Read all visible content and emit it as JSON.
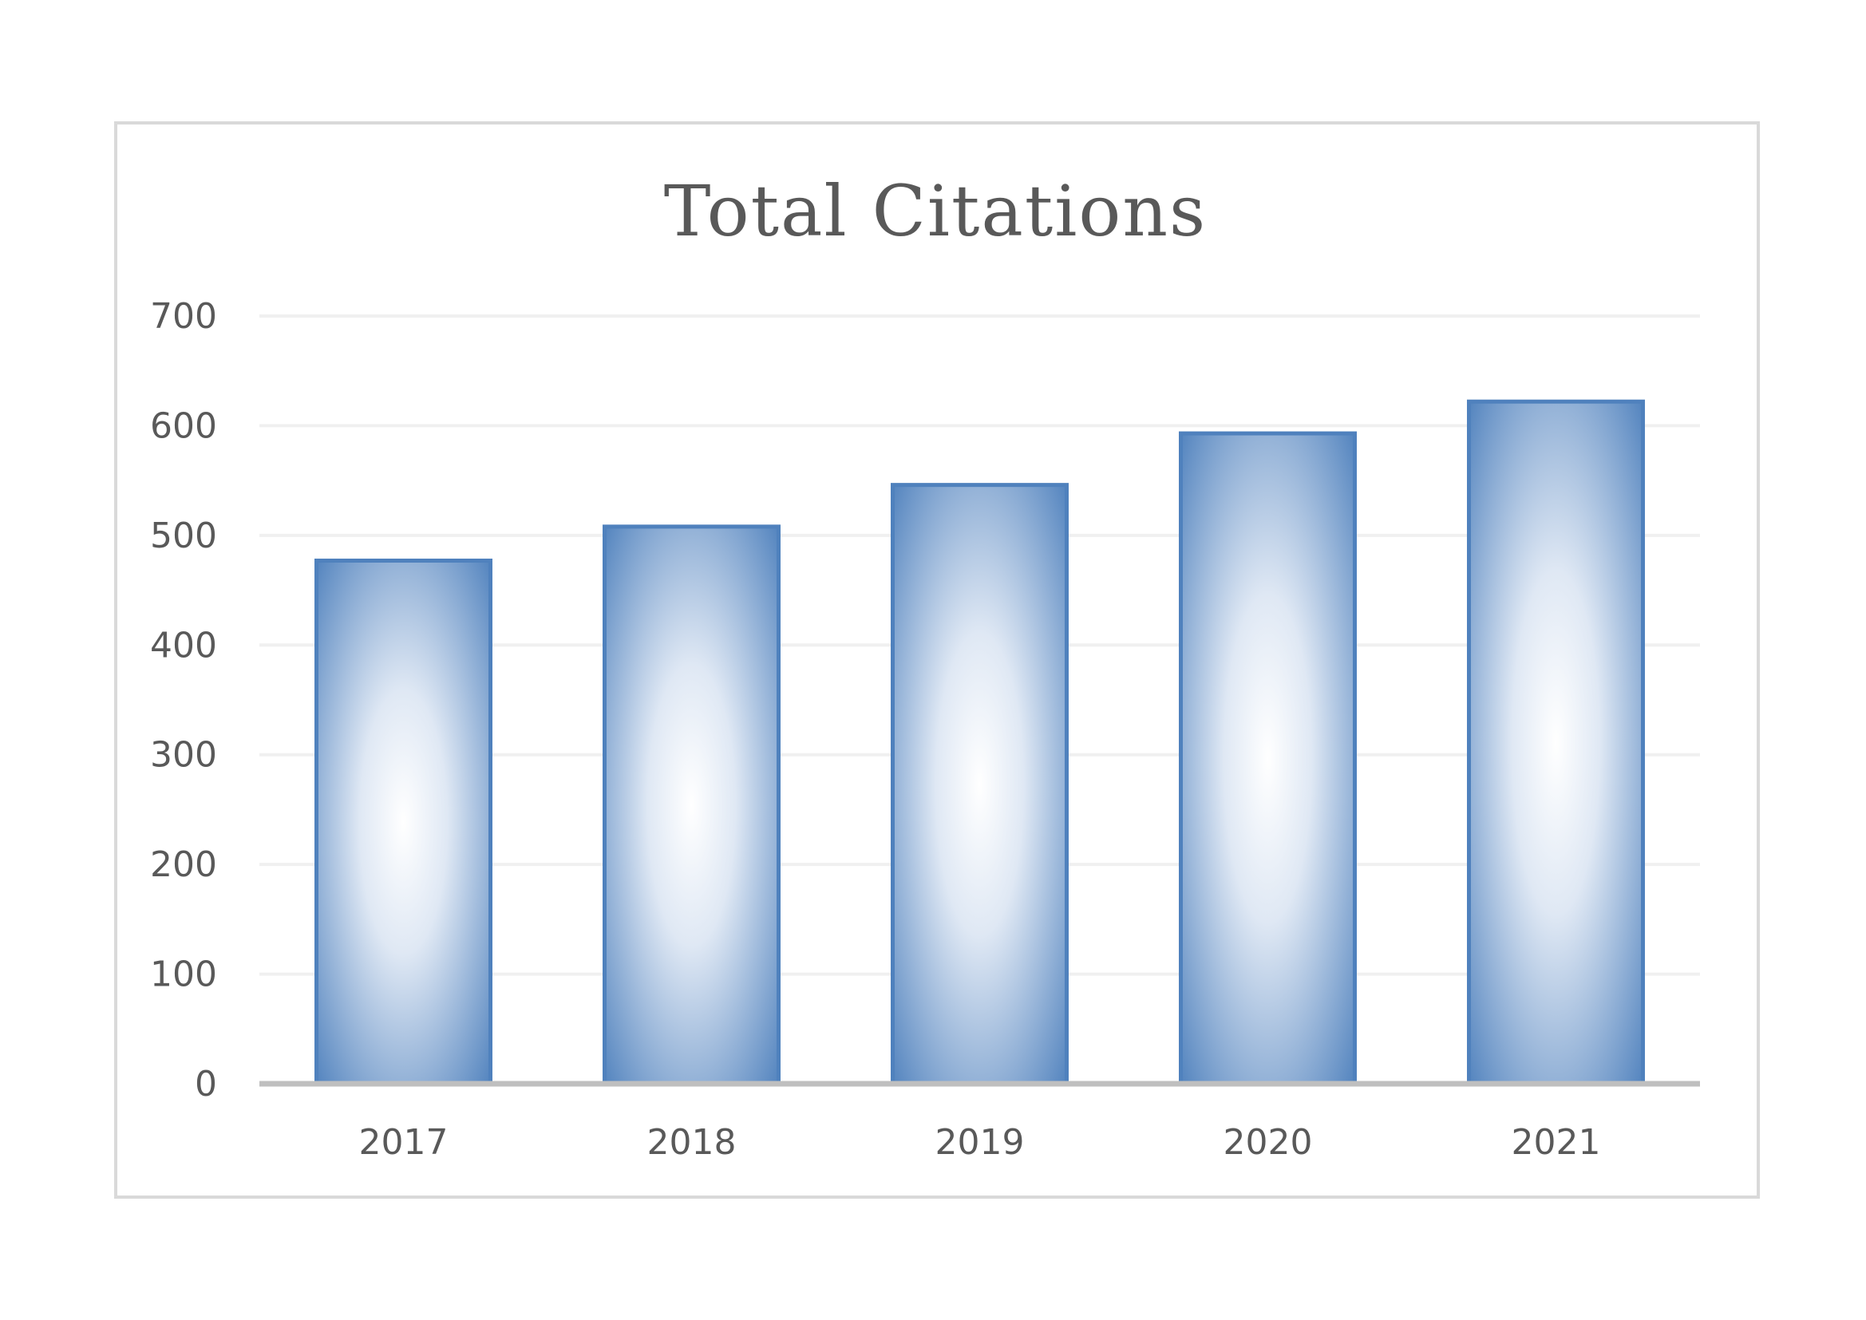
{
  "chart_data": {
    "type": "bar",
    "title": "Total Citations",
    "xlabel": "",
    "ylabel": "",
    "categories": [
      "2017",
      "2018",
      "2019",
      "2020",
      "2021"
    ],
    "values": [
      477,
      508,
      546,
      593,
      622
    ],
    "ylim": [
      0,
      700
    ],
    "yticks": [
      0,
      100,
      200,
      300,
      400,
      500,
      600,
      700
    ],
    "grid": true,
    "legend": "none",
    "colors": {
      "bar_edge": "#4f81bd",
      "bar_center": "#ffffff",
      "gridline": "#f0f0f0",
      "axis": "#bfbfbf",
      "text": "#595959"
    }
  }
}
